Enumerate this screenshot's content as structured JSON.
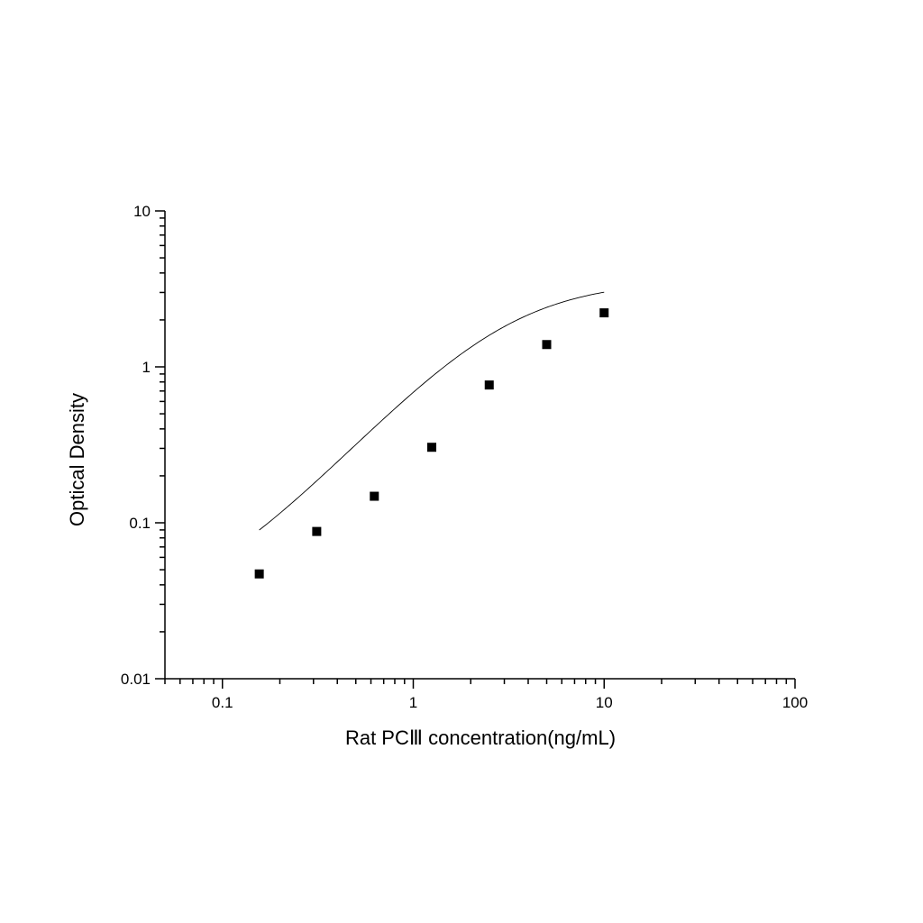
{
  "chart_data": {
    "type": "scatter",
    "xlabel": "Rat PCⅢ concentration(ng/mL)",
    "ylabel": "Optical Density",
    "xscale": "log",
    "yscale": "log",
    "xlim": [
      0.05,
      100
    ],
    "ylim": [
      0.01,
      10
    ],
    "xticks": [
      {
        "value": 0.1,
        "label": "0.1"
      },
      {
        "value": 1,
        "label": "1"
      },
      {
        "value": 10,
        "label": "10"
      },
      {
        "value": 100,
        "label": "100"
      }
    ],
    "yticks": [
      {
        "value": 0.01,
        "label": "0.01"
      },
      {
        "value": 0.1,
        "label": "0.1"
      },
      {
        "value": 1,
        "label": "1"
      },
      {
        "value": 10,
        "label": "10"
      }
    ],
    "grid": false,
    "legend": "none",
    "points": {
      "x": [
        0.156,
        0.312,
        0.625,
        1.25,
        2.5,
        5,
        10
      ],
      "y": [
        0.047,
        0.088,
        0.148,
        0.305,
        0.765,
        1.39,
        2.22
      ]
    },
    "fit_curve": {
      "type": "four-parameter logistic",
      "x_range": [
        0.156,
        10
      ],
      "A": 0.025,
      "B": 1.35,
      "C": 3.0,
      "D": 3.6
    },
    "marker": "filled square",
    "color": "#000000"
  }
}
